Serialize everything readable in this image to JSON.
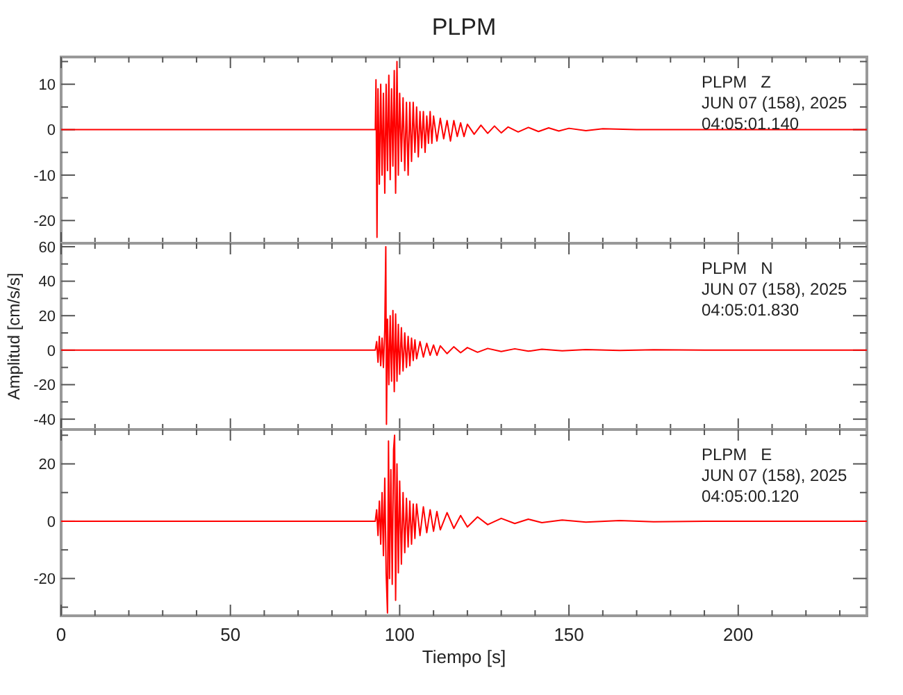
{
  "chart_data": [
    {
      "type": "line",
      "title": "PLPM",
      "annotations": [
        "PLPM   Z",
        "JUN 07 (158), 2025",
        "04:05:01.140"
      ],
      "tick_labels": "y",
      "xlim": [
        0,
        238
      ],
      "xticks": [
        0,
        {
          "value": 10,
          "label": null
        },
        {
          "value": 20,
          "label": null
        },
        {
          "value": 30,
          "label": null
        },
        {
          "value": 40,
          "label": null
        },
        50,
        {
          "value": 60,
          "label": null
        },
        {
          "value": 70,
          "label": null
        },
        {
          "value": 80,
          "label": null
        },
        {
          "value": 90,
          "label": null
        },
        100,
        {
          "value": 110,
          "label": null
        },
        {
          "value": 120,
          "label": null
        },
        {
          "value": 130,
          "label": null
        },
        {
          "value": 140,
          "label": null
        },
        150,
        {
          "value": 160,
          "label": null
        },
        {
          "value": 170,
          "label": null
        },
        {
          "value": 180,
          "label": null
        },
        {
          "value": 190,
          "label": null
        },
        200,
        {
          "value": 210,
          "label": null
        },
        {
          "value": 220,
          "label": null
        },
        {
          "value": 230,
          "label": null
        }
      ],
      "ylim": [
        -25,
        16
      ],
      "yticks": [
        {
          "value": -25,
          "label": null
        },
        -20,
        {
          "value": -15,
          "label": null
        },
        -10,
        {
          "value": -5,
          "label": null
        },
        0,
        {
          "value": 5,
          "label": null
        },
        10,
        {
          "value": 15,
          "label": null
        }
      ],
      "series": [
        {
          "color": "#ff0000",
          "x": [
            0,
            30,
            60,
            90,
            92.8,
            93.0,
            93.3,
            93.6,
            94.0,
            94.4,
            94.8,
            95.2,
            95.6,
            96.0,
            96.4,
            96.8,
            97.2,
            97.6,
            98.0,
            98.4,
            98.8,
            99.2,
            99.6,
            100.0,
            100.5,
            101,
            101.5,
            102,
            102.5,
            103,
            103.5,
            104,
            104.5,
            105,
            105.5,
            106,
            106.5,
            107,
            107.5,
            108,
            108.5,
            109,
            109.5,
            110,
            111,
            112,
            113,
            114,
            115,
            116,
            117,
            118,
            119,
            120,
            122,
            124,
            126,
            128,
            130,
            132,
            135,
            138,
            141,
            144,
            147,
            150,
            155,
            160,
            170,
            238
          ],
          "values": [
            0,
            0,
            0,
            0,
            0,
            11,
            -23.7,
            9,
            -12,
            10,
            -10,
            8,
            -14,
            10,
            -9,
            12,
            -11,
            9,
            -8,
            13,
            -14,
            15,
            -10,
            8,
            -7,
            7,
            -9,
            6,
            -10,
            6,
            -7,
            6,
            -5,
            5,
            -6,
            4,
            -4,
            4,
            -5,
            3,
            -3,
            4,
            -3,
            3,
            -2.5,
            2.5,
            -2,
            2,
            -2.5,
            2,
            -1.5,
            1.5,
            -1.5,
            1.2,
            -1,
            1,
            -0.8,
            0.8,
            -0.7,
            0.6,
            -0.5,
            0.5,
            -0.4,
            0.4,
            -0.3,
            0.3,
            -0.2,
            0.2,
            0,
            0
          ]
        }
      ]
    },
    {
      "type": "line",
      "ylabel": "Amplitud [cm/s/s]",
      "annotations": [
        "PLPM   N",
        "JUN 07 (158), 2025",
        "04:05:01.830"
      ],
      "tick_labels": "y",
      "xlim": [
        0,
        238
      ],
      "xticks": [
        0,
        {
          "value": 10,
          "label": null
        },
        {
          "value": 20,
          "label": null
        },
        {
          "value": 30,
          "label": null
        },
        {
          "value": 40,
          "label": null
        },
        50,
        {
          "value": 60,
          "label": null
        },
        {
          "value": 70,
          "label": null
        },
        {
          "value": 80,
          "label": null
        },
        {
          "value": 90,
          "label": null
        },
        100,
        {
          "value": 110,
          "label": null
        },
        {
          "value": 120,
          "label": null
        },
        {
          "value": 130,
          "label": null
        },
        {
          "value": 140,
          "label": null
        },
        150,
        {
          "value": 160,
          "label": null
        },
        {
          "value": 170,
          "label": null
        },
        {
          "value": 180,
          "label": null
        },
        {
          "value": 190,
          "label": null
        },
        200,
        {
          "value": 210,
          "label": null
        },
        {
          "value": 220,
          "label": null
        },
        {
          "value": 230,
          "label": null
        }
      ],
      "ylim": [
        -46,
        62
      ],
      "yticks": [
        -40,
        {
          "value": -30,
          "label": null
        },
        -20,
        {
          "value": -10,
          "label": null
        },
        0,
        {
          "value": 10,
          "label": null
        },
        20,
        {
          "value": 30,
          "label": null
        },
        40,
        {
          "value": 50,
          "label": null
        },
        60
      ],
      "series": [
        {
          "color": "#ff0000",
          "x": [
            0,
            92,
            92.8,
            93.2,
            93.6,
            94,
            94.4,
            94.8,
            95.2,
            95.6,
            95.9,
            96.1,
            96.4,
            96.8,
            97.2,
            97.6,
            98,
            98.4,
            98.8,
            99.2,
            99.6,
            100,
            100.5,
            101,
            101.5,
            102,
            102.5,
            103,
            103.5,
            104,
            104.5,
            105,
            106,
            107,
            108,
            109,
            110,
            111,
            112,
            114,
            116,
            118,
            120,
            123,
            126,
            130,
            134,
            138,
            142,
            148,
            155,
            165,
            175,
            190,
            238
          ],
          "values": [
            0,
            0,
            0,
            5,
            -7,
            8,
            -9,
            7,
            -10,
            12,
            60,
            -43,
            18,
            -20,
            20,
            -18,
            23,
            -24,
            21,
            -18,
            15,
            -14,
            13,
            -12,
            10,
            -10,
            8,
            -9,
            7,
            -6,
            6,
            -5,
            5,
            -4,
            4,
            -3,
            3,
            -3,
            2.5,
            -2,
            2,
            -1.5,
            1.5,
            -1.2,
            1,
            -0.8,
            0.8,
            -0.6,
            0.5,
            -0.4,
            0.3,
            -0.2,
            0.2,
            0,
            0
          ]
        }
      ]
    },
    {
      "type": "line",
      "xlabel": "Tiempo [s]",
      "annotations": [
        "PLPM   E",
        "JUN 07 (158), 2025",
        "04:05:00.120"
      ],
      "xlim": [
        0,
        238
      ],
      "xticks": [
        0,
        {
          "value": 10,
          "label": null
        },
        {
          "value": 20,
          "label": null
        },
        {
          "value": 30,
          "label": null
        },
        {
          "value": 40,
          "label": null
        },
        50,
        {
          "value": 60,
          "label": null
        },
        {
          "value": 70,
          "label": null
        },
        {
          "value": 80,
          "label": null
        },
        {
          "value": 90,
          "label": null
        },
        100,
        {
          "value": 110,
          "label": null
        },
        {
          "value": 120,
          "label": null
        },
        {
          "value": 130,
          "label": null
        },
        {
          "value": 140,
          "label": null
        },
        150,
        {
          "value": 160,
          "label": null
        },
        {
          "value": 170,
          "label": null
        },
        {
          "value": 180,
          "label": null
        },
        {
          "value": 190,
          "label": null
        },
        200,
        {
          "value": 210,
          "label": null
        },
        {
          "value": 220,
          "label": null
        },
        {
          "value": 230,
          "label": null
        }
      ],
      "ylim": [
        -33,
        32
      ],
      "yticks": [
        {
          "value": -30,
          "label": null
        },
        -20,
        {
          "value": -10,
          "label": null
        },
        0,
        {
          "value": 10,
          "label": null
        },
        20,
        {
          "value": 30,
          "label": null
        }
      ],
      "series": [
        {
          "color": "#ff0000",
          "x": [
            0,
            92,
            92.8,
            93.2,
            93.6,
            94,
            94.4,
            94.8,
            95.2,
            95.6,
            96,
            96.4,
            96.7,
            97,
            97.4,
            97.8,
            98.2,
            98.5,
            98.8,
            99.2,
            99.6,
            100,
            100.5,
            101,
            101.5,
            102,
            102.5,
            103,
            103.5,
            104,
            104.5,
            105,
            106,
            107,
            108,
            109,
            110,
            111,
            112,
            114,
            116,
            118,
            120,
            123,
            126,
            130,
            134,
            138,
            142,
            148,
            155,
            165,
            175,
            190,
            238
          ],
          "values": [
            0,
            0,
            0,
            4,
            -5,
            7,
            -8,
            10,
            -12,
            15,
            -18,
            -32,
            28,
            -20,
            18,
            -22,
            25,
            30,
            -27.6,
            20,
            -18,
            14,
            -15,
            10,
            -11,
            8,
            -9,
            7,
            -8,
            6,
            -6,
            6,
            -5,
            5,
            -4,
            4,
            -3.5,
            3.4,
            -3,
            3,
            -2.5,
            2,
            -2,
            1.5,
            -1.2,
            1,
            -0.8,
            0.7,
            -0.5,
            0.4,
            -0.3,
            0.2,
            -0.2,
            0,
            0
          ]
        }
      ]
    }
  ]
}
